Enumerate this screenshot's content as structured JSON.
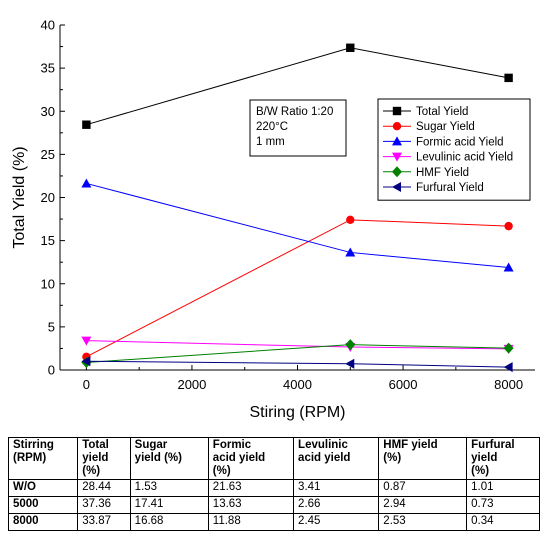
{
  "chart_data": {
    "type": "line",
    "xlabel": "Stiring (RPM)",
    "ylabel": "Total Yield (%)",
    "xlim": [
      -500,
      8500
    ],
    "ylim": [
      0,
      40
    ],
    "x_ticks": [
      0,
      2000,
      4000,
      6000,
      8000
    ],
    "y_ticks": [
      0,
      5,
      10,
      15,
      20,
      25,
      30,
      35,
      40
    ],
    "grid": false,
    "legend_position": "inside-right",
    "annotation": [
      "B/W Ratio 1:20",
      "220°C",
      "1 mm"
    ],
    "x": [
      0,
      5000,
      8000
    ],
    "series": [
      {
        "name": "Total Yield",
        "values": [
          28.44,
          37.36,
          33.87
        ],
        "color": "#000000",
        "marker": "square"
      },
      {
        "name": "Sugar Yield",
        "values": [
          1.53,
          17.41,
          16.68
        ],
        "color": "#ff0000",
        "marker": "circle"
      },
      {
        "name": "Formic acid Yield",
        "values": [
          21.63,
          13.63,
          11.88
        ],
        "color": "#0000ff",
        "marker": "triangle-up"
      },
      {
        "name": "Levulinic acid Yield",
        "values": [
          3.41,
          2.66,
          2.45
        ],
        "color": "#ff00ff",
        "marker": "triangle-down"
      },
      {
        "name": "HMF Yield",
        "values": [
          0.87,
          2.94,
          2.53
        ],
        "color": "#008000",
        "marker": "diamond"
      },
      {
        "name": "Furfural Yield",
        "values": [
          1.01,
          0.73,
          0.34
        ],
        "color": "#000080",
        "marker": "triangle-left"
      }
    ]
  },
  "table": {
    "headers": [
      [
        "Stirring",
        "(RPM)"
      ],
      [
        "Total",
        "yield",
        "(%)"
      ],
      [
        "Sugar",
        "yield (%)"
      ],
      [
        "Formic",
        "acid yield",
        "(%)"
      ],
      [
        "Levulinic",
        "acid yield"
      ],
      [
        "HMF yield",
        "(%)"
      ],
      [
        "Furfural",
        "yield",
        "(%)"
      ]
    ],
    "rows": [
      [
        "W/O",
        "28.44",
        "1.53",
        "21.63",
        "3.41",
        "0.87",
        "1.01"
      ],
      [
        "5000",
        "37.36",
        "17.41",
        "13.63",
        "2.66",
        "2.94",
        "0.73"
      ],
      [
        "8000",
        "33.87",
        "16.68",
        "11.88",
        "2.45",
        "2.53",
        "0.34"
      ]
    ]
  }
}
